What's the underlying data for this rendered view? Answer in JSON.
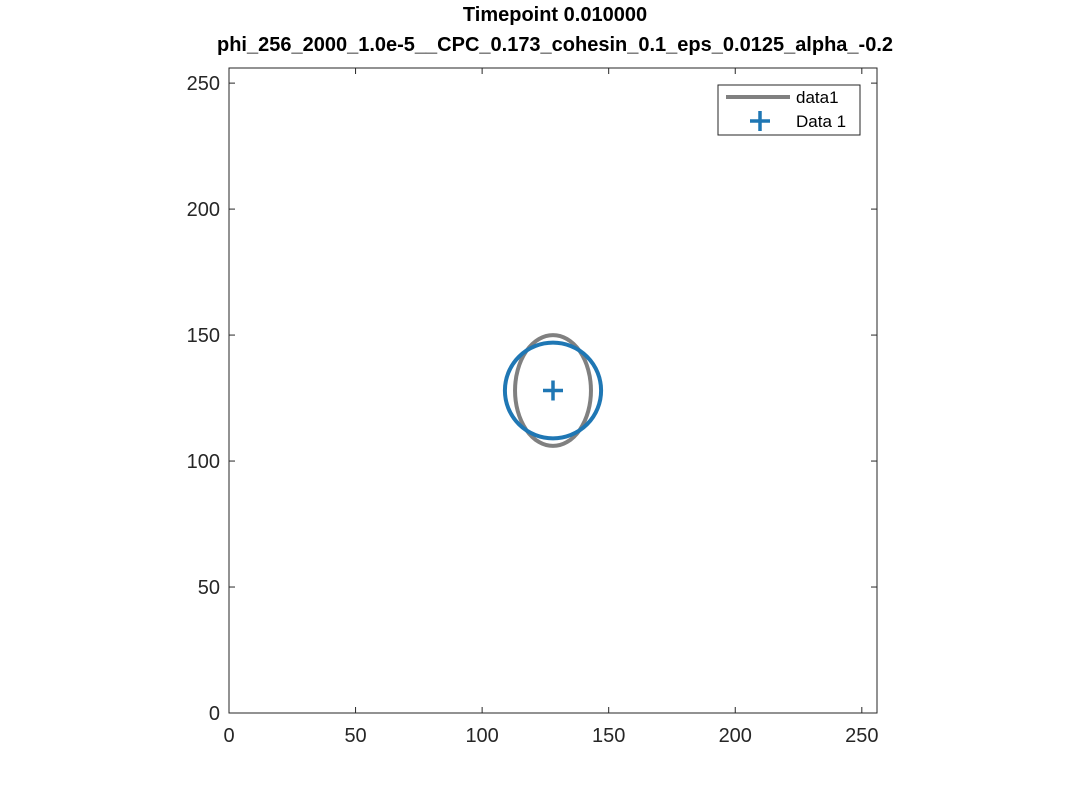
{
  "chart_data": {
    "type": "line",
    "title": "Timepoint 0.010000",
    "subtitle": "phi_256_2000_1.0e-5__CPC_0.173_cohesin_0.1_eps_0.0125_alpha_-0.2",
    "xlabel": "",
    "ylabel": "",
    "xlim": [
      0,
      256
    ],
    "ylim": [
      0,
      256
    ],
    "xticks": [
      0,
      50,
      100,
      150,
      200,
      250
    ],
    "yticks": [
      0,
      50,
      100,
      150,
      200,
      250
    ],
    "grid": false,
    "legend_position": "top-right",
    "series": [
      {
        "name": "data1",
        "kind": "ellipse",
        "center": [
          128,
          128
        ],
        "radius_x": 15,
        "radius_y": 22,
        "color": "#808080"
      },
      {
        "name": "Data 1",
        "kind": "marker",
        "marker": "+",
        "x": [
          128
        ],
        "y": [
          128
        ],
        "color": "#1f77b4"
      },
      {
        "name": "",
        "kind": "circle",
        "center": [
          128,
          128
        ],
        "radius": 19,
        "color": "#1f77b4"
      }
    ]
  }
}
